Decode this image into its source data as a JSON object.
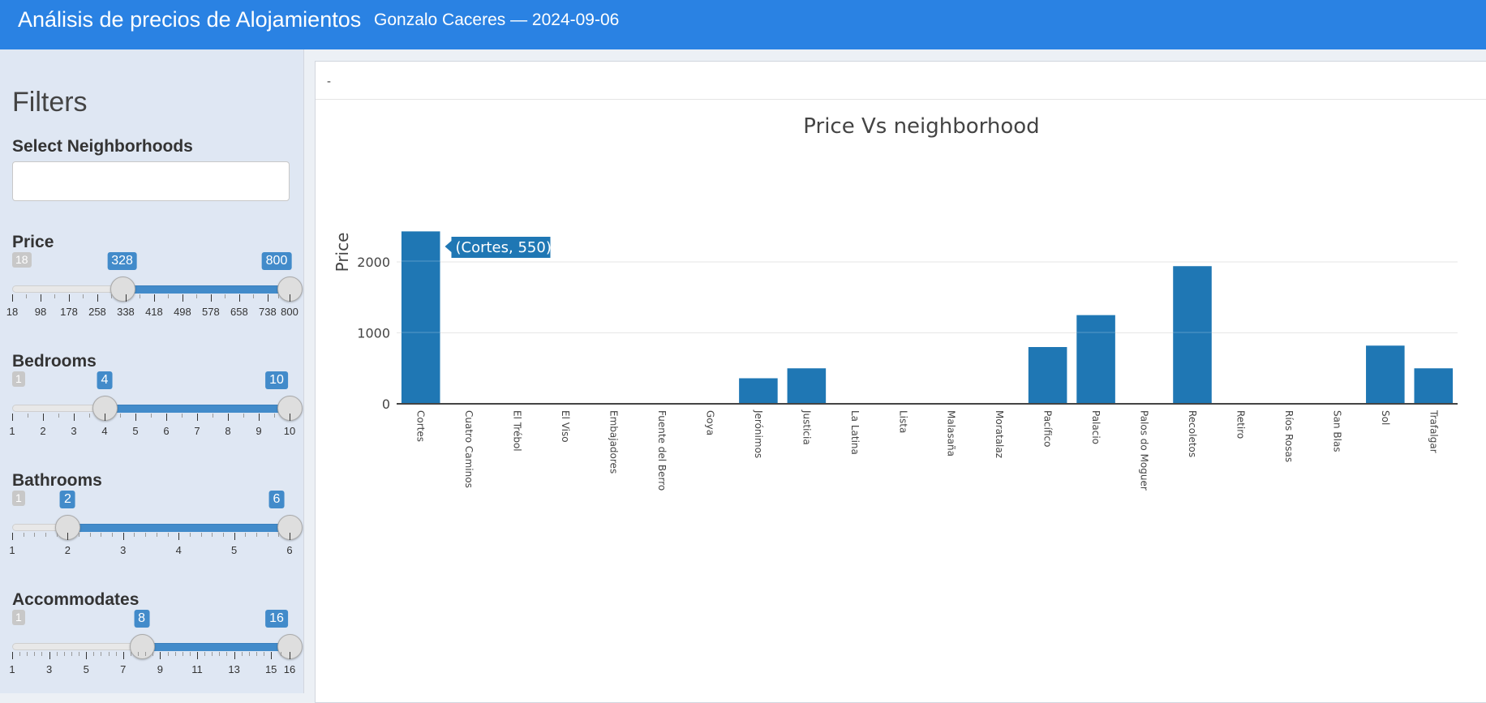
{
  "header": {
    "title": "Análisis de precios de Alojamientos",
    "subtitle": "Gonzalo Caceres — 2024-09-06",
    "bg_color": "#2a82e3"
  },
  "sidebar": {
    "title": "Filters",
    "neighborhoods_label": "Select Neighborhoods",
    "neighborhoods_value": "",
    "price": {
      "label": "Price",
      "min": 18,
      "max": 800,
      "from": 328,
      "to": 800,
      "min_label": "18",
      "from_label": "328",
      "to_label": "800",
      "ticks": [
        "18",
        "98",
        "178",
        "258",
        "338",
        "418",
        "498",
        "578",
        "658",
        "738",
        "800"
      ]
    },
    "bedrooms": {
      "label": "Bedrooms",
      "min": 1,
      "max": 10,
      "from": 4,
      "to": 10,
      "min_label": "1",
      "from_label": "4",
      "to_label": "10",
      "ticks": [
        "1",
        "2",
        "3",
        "4",
        "5",
        "6",
        "7",
        "8",
        "9",
        "10"
      ]
    },
    "bathrooms": {
      "label": "Bathrooms",
      "min": 1,
      "max": 6,
      "from": 2,
      "to": 6,
      "min_label": "1",
      "from_label": "2",
      "to_label": "6",
      "ticks": [
        "1",
        "2",
        "3",
        "4",
        "5",
        "6"
      ]
    },
    "accommodates": {
      "label": "Accommodates",
      "min": 1,
      "max": 16,
      "from": 8,
      "to": 16,
      "min_label": "1",
      "from_label": "8",
      "to_label": "16",
      "ticks": [
        "1",
        "3",
        "5",
        "7",
        "9",
        "11",
        "13",
        "15",
        "16"
      ]
    }
  },
  "main": {
    "box_title": "-"
  },
  "chart_data": {
    "type": "bar",
    "title": "Price Vs neighborhood",
    "xlabel": "",
    "ylabel": "Price",
    "ylim": [
      0,
      2000
    ],
    "yticks": [
      "0",
      "1000",
      "2000"
    ],
    "bar_color": "#1f77b4",
    "categories": [
      "Cortes",
      "Cuatro Caminos",
      "El Trébol",
      "El Viso",
      "Embajadores",
      "Fuente del Berro",
      "Goya",
      "Jerónimos",
      "Justicia",
      "La Latina",
      "Lista",
      "Malasaña",
      "Moratalaz",
      "Pacífico",
      "Palacio",
      "Palos do Moguer",
      "Recoletos",
      "Retiro",
      "Ríos Rosas",
      "San Blas",
      "Sol",
      "Trafalgar"
    ],
    "values": [
      2430,
      0,
      0,
      0,
      0,
      0,
      0,
      360,
      500,
      0,
      0,
      0,
      0,
      800,
      1250,
      0,
      1940,
      0,
      0,
      0,
      820,
      500
    ],
    "hover_label": "(Cortes, 550)"
  }
}
